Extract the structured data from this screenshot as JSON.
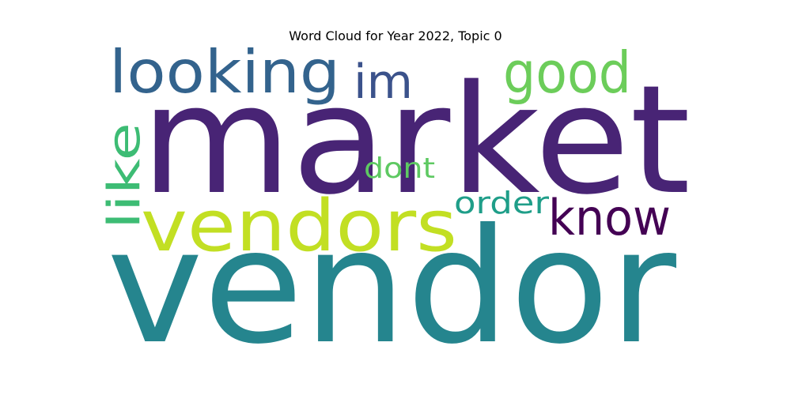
{
  "chart_data": {
    "type": "wordcloud",
    "title": "Word Cloud for Year 2022, Topic 0",
    "words": [
      {
        "text": "vendor",
        "weight": 1.0,
        "color": "#25858e"
      },
      {
        "text": "market",
        "weight": 0.92,
        "color": "#482475"
      },
      {
        "text": "vendors",
        "weight": 0.5,
        "color": "#c2df23"
      },
      {
        "text": "looking",
        "weight": 0.42,
        "color": "#33638d"
      },
      {
        "text": "good",
        "weight": 0.38,
        "color": "#6ccd5a"
      },
      {
        "text": "im",
        "weight": 0.34,
        "color": "#3b528b"
      },
      {
        "text": "like",
        "weight": 0.32,
        "color": "#3dbc74"
      },
      {
        "text": "know",
        "weight": 0.32,
        "color": "#440154"
      },
      {
        "text": "order",
        "weight": 0.24,
        "color": "#1f9e89"
      },
      {
        "text": "dont",
        "weight": 0.22,
        "color": "#5ec962"
      }
    ]
  }
}
